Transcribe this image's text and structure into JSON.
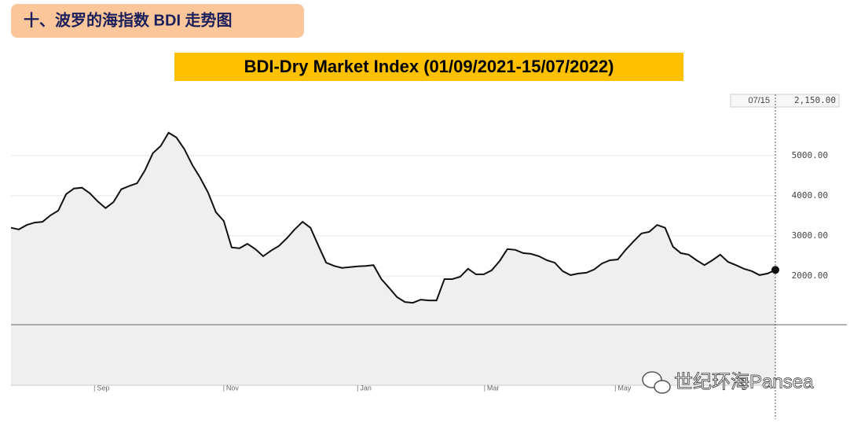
{
  "header": {
    "title": "十、波罗的海指数 BDI 走势图"
  },
  "chart_data": {
    "type": "line",
    "title": "BDI-Dry Market Index (01/09/2021-15/07/2022)",
    "color": "#111111",
    "values": [
      3200,
      3160,
      3270,
      3330,
      3350,
      3510,
      3630,
      4040,
      4180,
      4200,
      4060,
      3860,
      3690,
      3840,
      4160,
      4240,
      4310,
      4630,
      5060,
      5240,
      5570,
      5450,
      5160,
      4770,
      4450,
      4080,
      3590,
      3370,
      2710,
      2690,
      2800,
      2670,
      2490,
      2630,
      2750,
      2940,
      3160,
      3350,
      3200,
      2760,
      2330,
      2250,
      2200,
      2220,
      2240,
      2250,
      2270,
      1920,
      1700,
      1470,
      1350,
      1330,
      1410,
      1390,
      1390,
      1920,
      1920,
      1980,
      2180,
      2040,
      2040,
      2140,
      2370,
      2670,
      2650,
      2570,
      2550,
      2490,
      2390,
      2330,
      2120,
      2020,
      2060,
      2080,
      2160,
      2310,
      2390,
      2410,
      2650,
      2860,
      3060,
      3100,
      3270,
      3200,
      2730,
      2570,
      2530,
      2390,
      2270,
      2390,
      2530,
      2350,
      2270,
      2180,
      2120,
      2020,
      2060,
      2150
    ],
    "ylim": [
      -725,
      6330
    ],
    "yticks": [
      {
        "value": 2000,
        "label": "2000.00"
      },
      {
        "value": 3000,
        "label": "3000.00"
      },
      {
        "value": 4000,
        "label": "4000.00"
      },
      {
        "value": 5000,
        "label": "5000.00"
      }
    ],
    "xticks": [
      {
        "value": 10.6,
        "label": "Sep"
      },
      {
        "value": 27.0,
        "label": "Nov"
      },
      {
        "value": 44.0,
        "label": "Jan"
      },
      {
        "value": 60.1,
        "label": "Mar"
      },
      {
        "value": 76.7,
        "label": "May"
      }
    ],
    "grid": true,
    "crosshair": {
      "x_label": "07/15",
      "value": 2150,
      "value_label": "2,150.00"
    }
  },
  "watermark": "世纪环海Pansea"
}
